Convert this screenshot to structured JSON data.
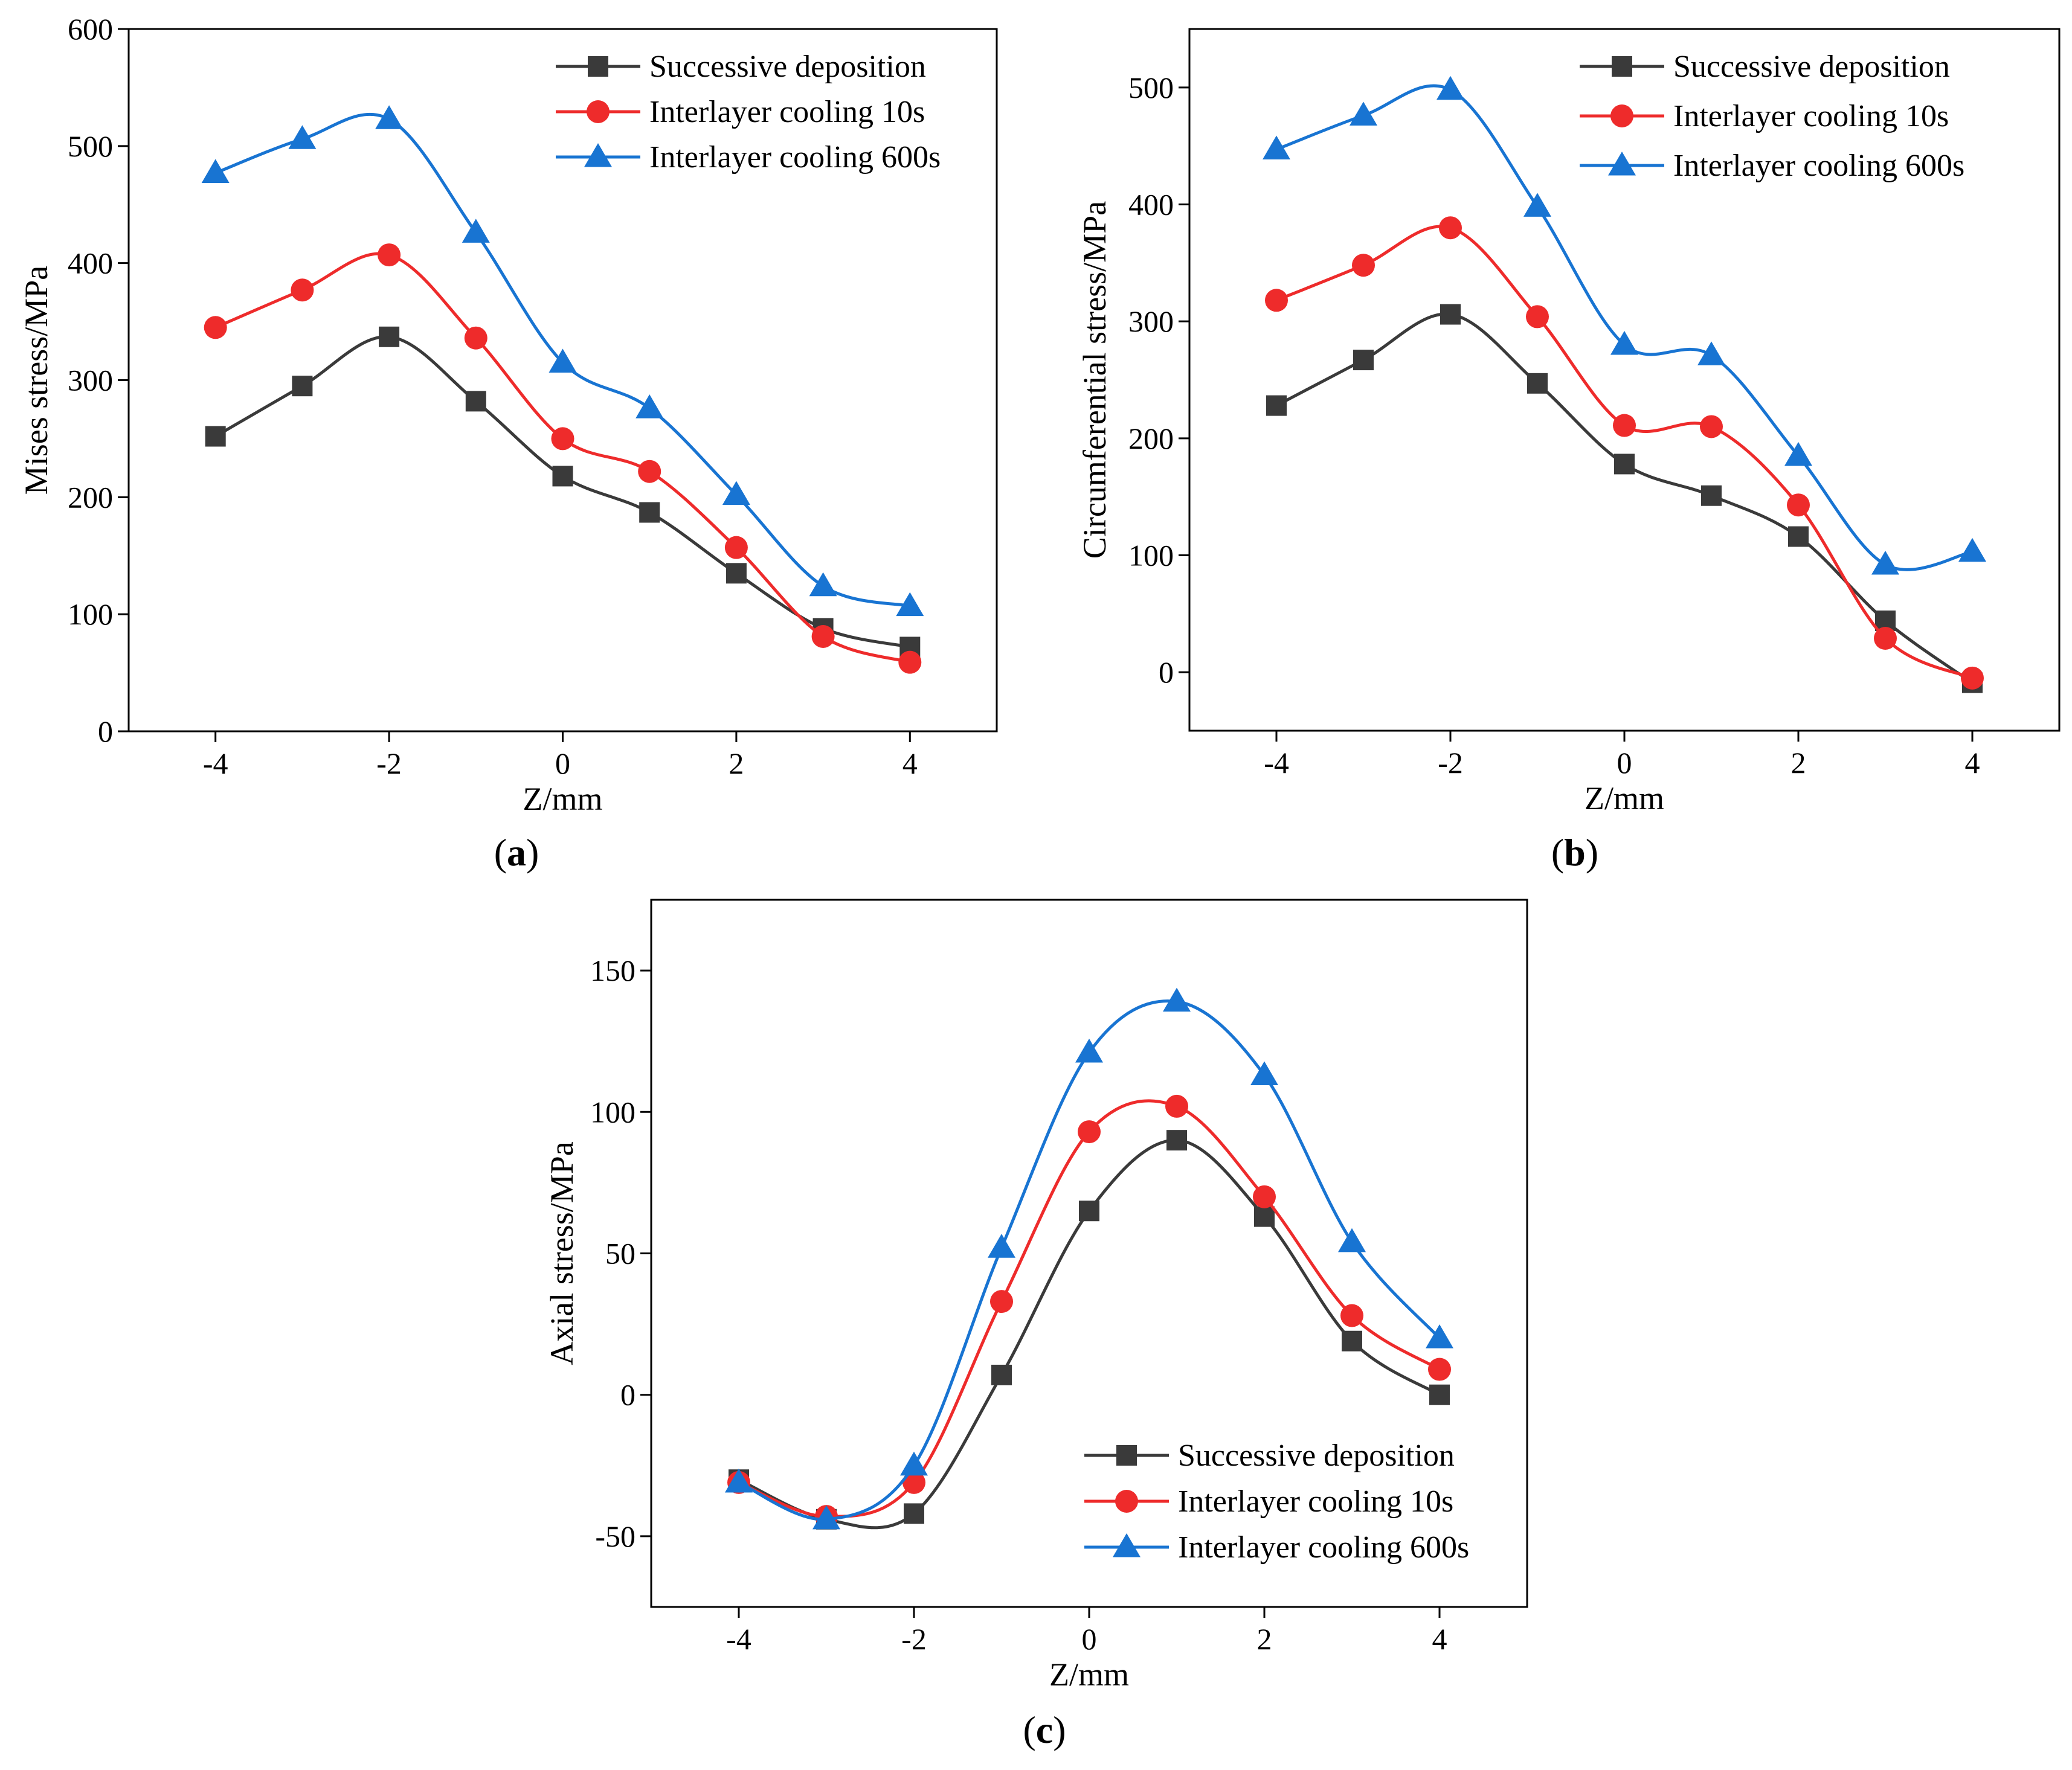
{
  "series_styles": [
    {
      "name": "Successive deposition",
      "color": "#3a3a3a",
      "marker": "square"
    },
    {
      "name": "Interlayer cooling 10s",
      "color": "#ee2b2b",
      "marker": "circle"
    },
    {
      "name": "Interlayer cooling 600s",
      "color": "#1874d2",
      "marker": "triangle"
    }
  ],
  "chart_data": [
    {
      "type": "line",
      "label": "(a)",
      "panel_letter": "a",
      "xlabel": "Z/mm",
      "ylabel": "Mises stress/MPa",
      "xlim": [
        -5,
        5
      ],
      "ylim": [
        0,
        600
      ],
      "xticks": [
        -4,
        -2,
        0,
        2,
        4
      ],
      "yticks": [
        0,
        100,
        200,
        300,
        400,
        500,
        600
      ],
      "legend_position": "top-right",
      "x": [
        -4,
        -3,
        -2,
        -1,
        0,
        1,
        2,
        3,
        4
      ],
      "series": [
        {
          "name": "Successive deposition",
          "values": [
            252,
            295,
            337,
            282,
            218,
            187,
            135,
            88,
            72
          ]
        },
        {
          "name": "Interlayer cooling 10s",
          "values": [
            345,
            377,
            407,
            336,
            250,
            222,
            157,
            81,
            59
          ]
        },
        {
          "name": "Interlayer cooling 600s",
          "values": [
            477,
            506,
            523,
            426,
            315,
            276,
            202,
            124,
            107
          ]
        }
      ]
    },
    {
      "type": "line",
      "label": "(b)",
      "panel_letter": "b",
      "xlabel": "Z/mm",
      "ylabel": "Circumferential stress/MPa",
      "xlim": [
        -5,
        5
      ],
      "ylim": [
        -50,
        550
      ],
      "xticks": [
        -4,
        -2,
        0,
        2,
        4
      ],
      "yticks": [
        0,
        100,
        200,
        300,
        400,
        500
      ],
      "legend_position": "top-right",
      "x": [
        -4,
        -3,
        -2,
        -1,
        0,
        1,
        2,
        3,
        4
      ],
      "series": [
        {
          "name": "Successive deposition",
          "values": [
            228,
            267,
            306,
            247,
            178,
            151,
            116,
            44,
            -9
          ]
        },
        {
          "name": "Interlayer cooling 10s",
          "values": [
            318,
            348,
            380,
            304,
            211,
            210,
            143,
            29,
            -5
          ]
        },
        {
          "name": "Interlayer cooling 600s",
          "values": [
            447,
            476,
            498,
            398,
            280,
            271,
            185,
            92,
            103
          ]
        }
      ]
    },
    {
      "type": "line",
      "label": "(c)",
      "panel_letter": "c",
      "xlabel": "Z/mm",
      "ylabel": "Axial stress/MPa",
      "xlim": [
        -5,
        5
      ],
      "ylim": [
        -75,
        175
      ],
      "xticks": [
        -4,
        -2,
        0,
        2,
        4
      ],
      "yticks": [
        -50,
        0,
        50,
        100,
        150
      ],
      "legend_position": "bottom-right",
      "x": [
        -4,
        -3,
        -2,
        -1,
        0,
        1,
        2,
        3,
        4
      ],
      "series": [
        {
          "name": "Successive deposition",
          "values": [
            -30,
            -44,
            -42,
            7,
            65,
            90,
            63,
            19,
            0
          ]
        },
        {
          "name": "Interlayer cooling 10s",
          "values": [
            -31,
            -43,
            -31,
            33,
            93,
            102,
            70,
            28,
            9
          ]
        },
        {
          "name": "Interlayer cooling 600s",
          "values": [
            -31,
            -44,
            -25,
            52,
            121,
            139,
            113,
            54,
            20
          ]
        }
      ]
    }
  ]
}
